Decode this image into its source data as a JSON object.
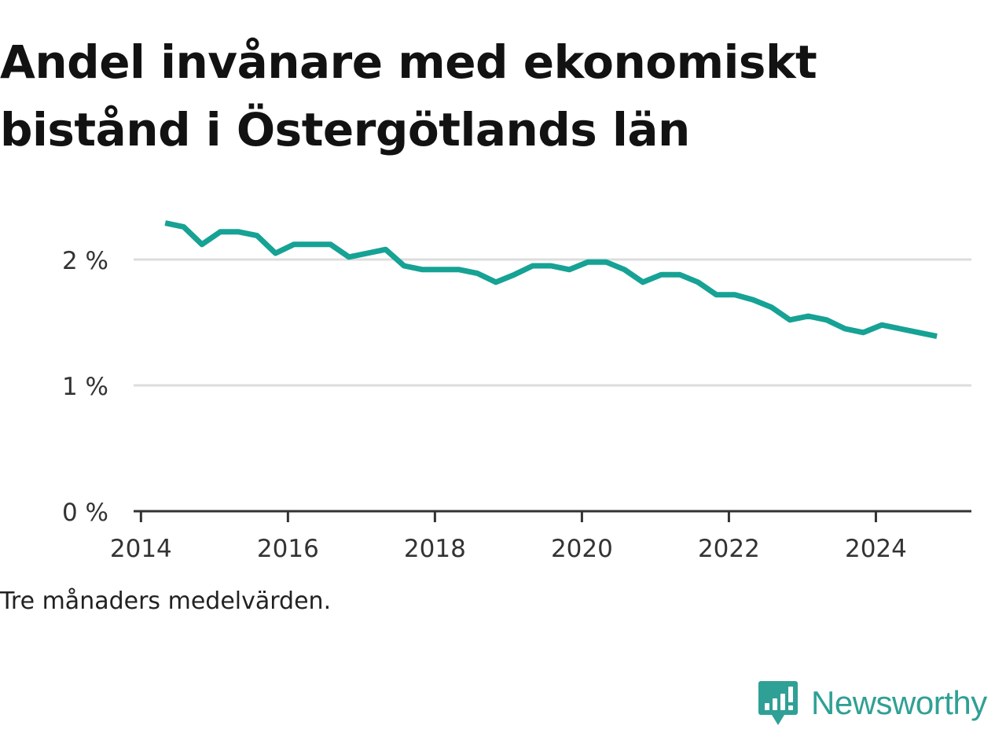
{
  "title": {
    "line1": "Andel invånare med ekonomiskt",
    "line2": "bistånd i Östergötlands län"
  },
  "note": "Tre månaders medelvärden.",
  "brand": {
    "name": "Newsworthy",
    "logo_icon": "bar-chart-speech-bubble-icon",
    "color": "#2fa095"
  },
  "chart_data": {
    "type": "line",
    "title": "Andel invånare med ekonomiskt bistånd i Östergötlands län",
    "xlabel": "",
    "ylabel": "",
    "xlim": [
      2013.9,
      2025.3
    ],
    "ylim": [
      0,
      2.5
    ],
    "grid": true,
    "legend": "none",
    "line_color": "#16a294",
    "x_ticks": [
      2014,
      2016,
      2018,
      2020,
      2022,
      2024
    ],
    "x_tick_labels": [
      "2014",
      "2016",
      "2018",
      "2020",
      "2022",
      "2024"
    ],
    "y_ticks": [
      0,
      1,
      2
    ],
    "y_tick_labels": [
      "0 %",
      "1 %",
      "2 %"
    ],
    "series": [
      {
        "x": [
          2014.33,
          2014.58,
          2014.83,
          2015.08,
          2015.33,
          2015.58,
          2015.83,
          2016.08,
          2016.33,
          2016.58,
          2016.83,
          2017.08,
          2017.33,
          2017.58,
          2017.83,
          2018.08,
          2018.33,
          2018.58,
          2018.83,
          2019.08,
          2019.33,
          2019.58,
          2019.83,
          2020.08,
          2020.33,
          2020.58,
          2020.83,
          2021.08,
          2021.33,
          2021.58,
          2021.83,
          2022.08,
          2022.33,
          2022.58,
          2022.83,
          2023.08,
          2023.33,
          2023.58,
          2023.83,
          2024.08,
          2024.33,
          2024.58,
          2024.83
        ],
        "y": [
          2.29,
          2.26,
          2.12,
          2.22,
          2.22,
          2.19,
          2.05,
          2.12,
          2.12,
          2.12,
          2.02,
          2.05,
          2.08,
          1.95,
          1.92,
          1.92,
          1.92,
          1.89,
          1.82,
          1.88,
          1.95,
          1.95,
          1.92,
          1.98,
          1.98,
          1.92,
          1.82,
          1.88,
          1.88,
          1.82,
          1.72,
          1.72,
          1.68,
          1.62,
          1.52,
          1.55,
          1.52,
          1.45,
          1.42,
          1.48,
          1.45,
          1.42,
          1.39
        ]
      }
    ]
  }
}
